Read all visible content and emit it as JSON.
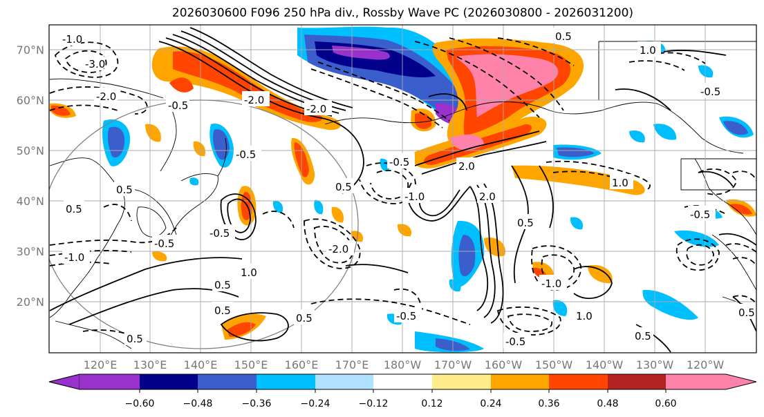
{
  "title": "2026030600 F096 250 hPa div., Rossby Wave PC (2026030800 - 2026031200)",
  "latitude_labels": [
    "70°N",
    "60°N",
    "50°N",
    "40°N",
    "30°N",
    "20°N"
  ],
  "longitude_labels": [
    "120°E",
    "130°E",
    "140°E",
    "150°E",
    "160°E",
    "170°E",
    "180°W",
    "170°W",
    "160°W",
    "150°W",
    "140°W",
    "130°W",
    "120°W"
  ],
  "contour_labels": [
    "-1.0",
    "-3.0",
    "-2.0",
    "-0.5",
    "-0.5",
    "-2.0",
    "-0.5",
    "0.5",
    "-1.0",
    "0.5",
    "1.0",
    "0.5",
    "0.5",
    "-2.0",
    "2.0",
    "2.0",
    "-1.0",
    "1.0",
    "0.5",
    "-1.0",
    "-0.5",
    "-0.5",
    "0.5",
    "0.5",
    "-0.5",
    "0.5",
    "0.5",
    "1.0",
    "-0.5",
    "0.5",
    "-0.5",
    "-2.0",
    "1.0",
    "0.5",
    "-0.5"
  ],
  "colorbar": {
    "colors": [
      "#9932cc",
      "#00008b",
      "#3a5fcd",
      "#00bfff",
      "#b0e2ff",
      "#ffffff",
      "#ffec8b",
      "#ffa500",
      "#ff4500",
      "#b22222",
      "#ff82ab"
    ],
    "ticks": [
      "−0.60",
      "−0.48",
      "−0.36",
      "−0.24",
      "−0.12",
      "0.12",
      "0.24",
      "0.36",
      "0.48",
      "0.60"
    ]
  }
}
